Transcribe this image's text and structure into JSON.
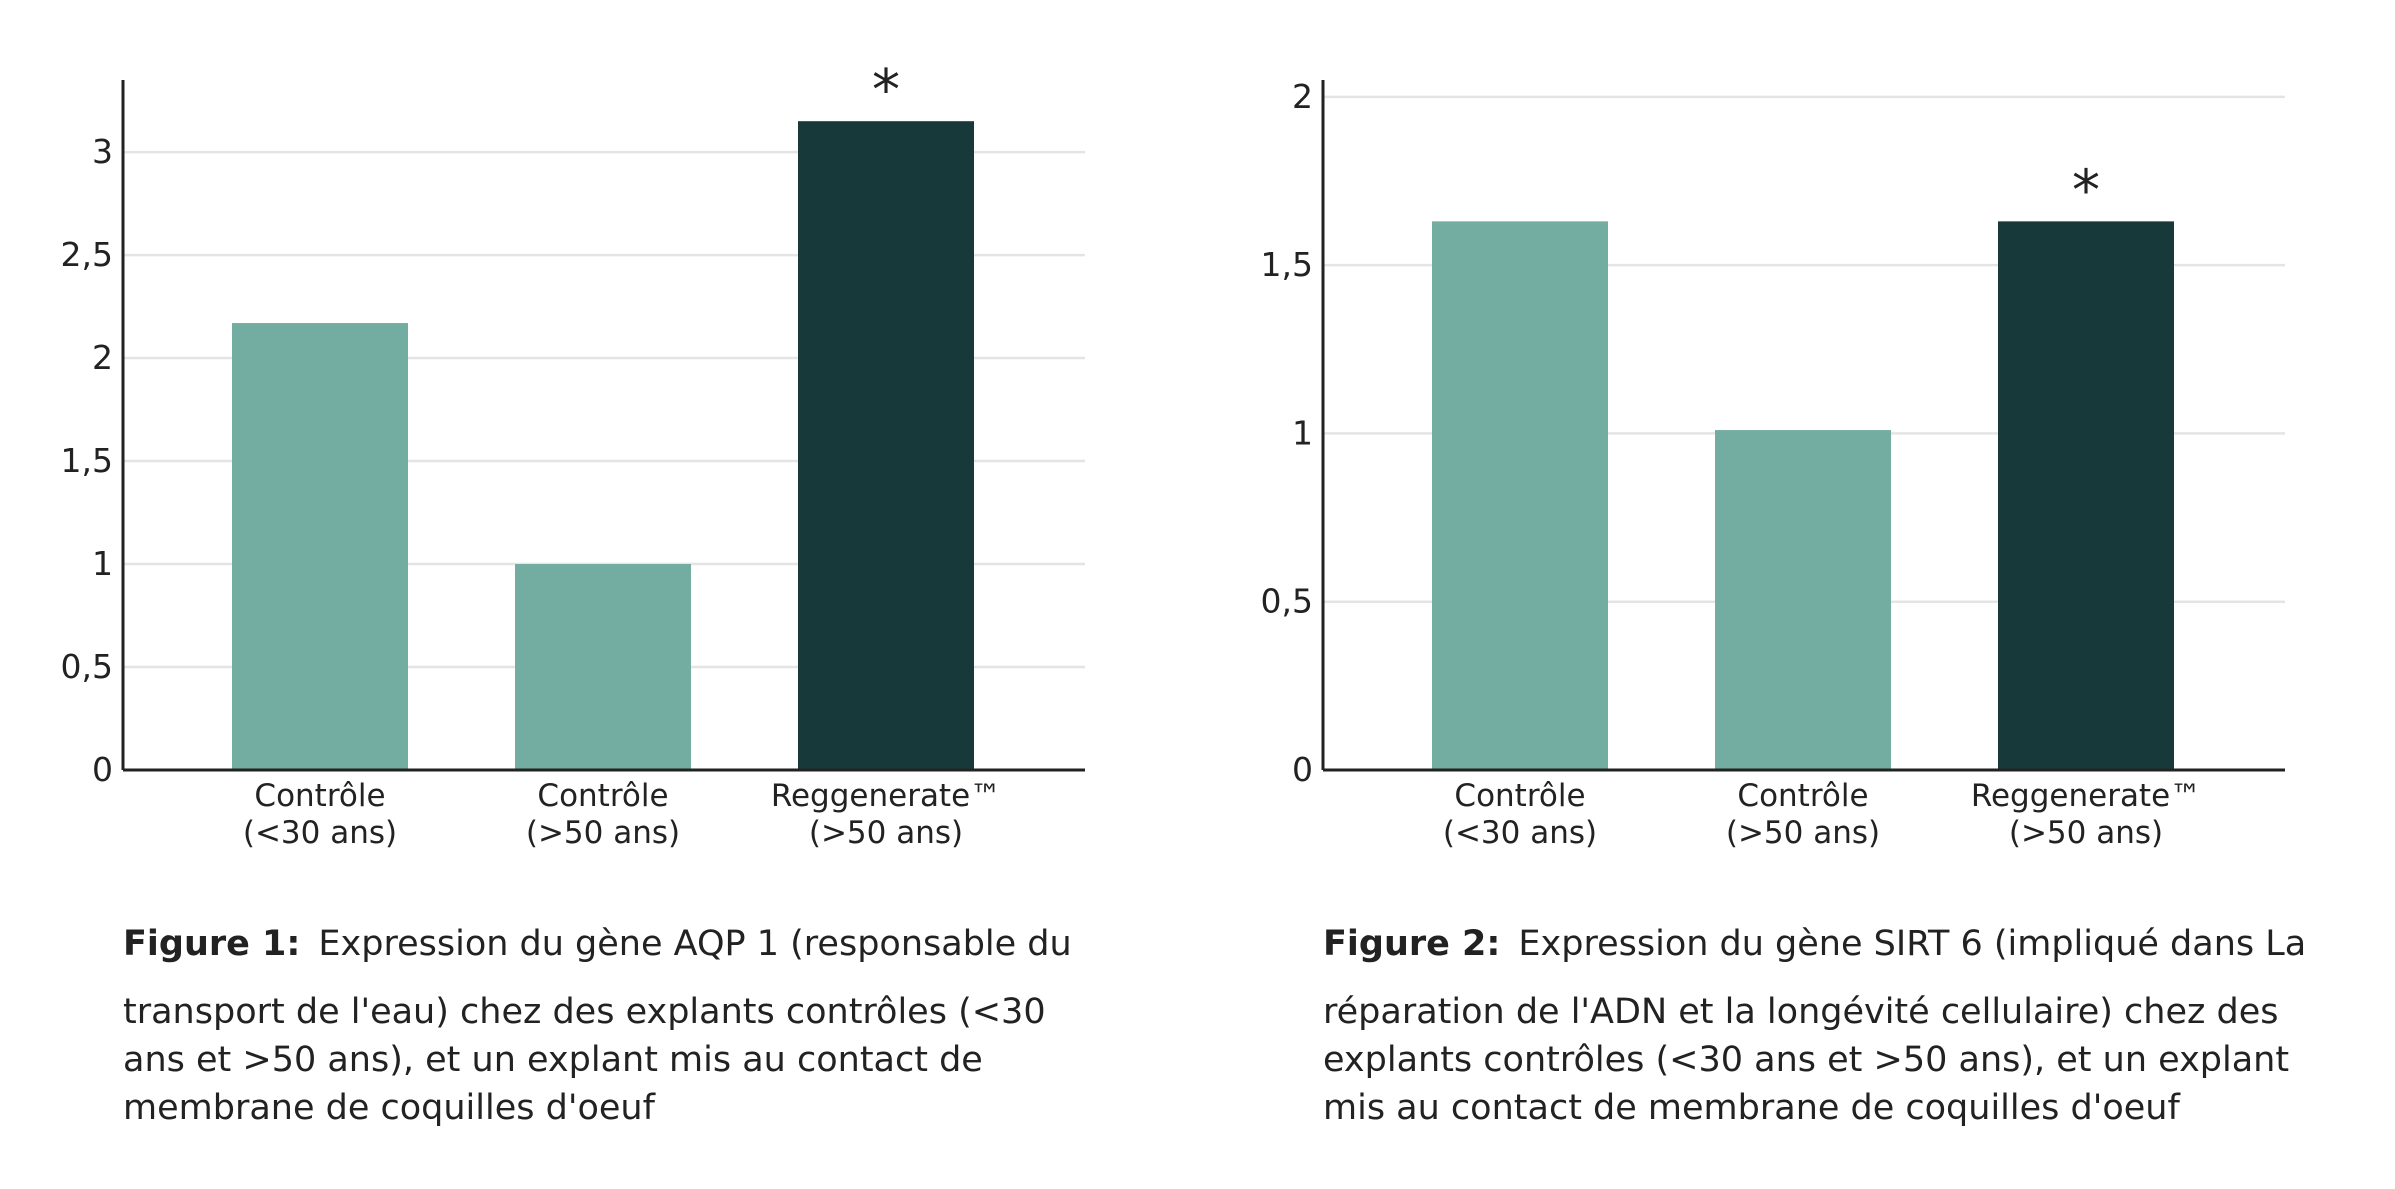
{
  "colors": {
    "control": "#73aca1",
    "product": "#17393a",
    "grid": "#e4e4e4",
    "axis": "#222222"
  },
  "figures": [
    {
      "caption": {
        "label": "Figure 1:",
        "line1": "Expression du gène AQP 1 (responsable du",
        "line2": "transport de l'eau) chez des explants contrôles (<30",
        "line3": "ans et >50 ans), et un explant mis au contact de",
        "line4": "membrane de coquilles d'oeuf"
      },
      "chart_data": {
        "type": "bar",
        "title": "",
        "xlabel": "",
        "ylabel": "",
        "ylim": [
          0,
          3.35
        ],
        "yticks": [
          0,
          0.5,
          1,
          1.5,
          2,
          2.5,
          3
        ],
        "ytick_labels": [
          "0",
          "0,5",
          "1",
          "1,5",
          "2",
          "2,5",
          "3"
        ],
        "grid": true,
        "categories": [
          {
            "line1": "Contrôle",
            "line2": "(<30 ans)"
          },
          {
            "line1": "Contrôle",
            "line2": "(>50 ans)"
          },
          {
            "line1": "Reggenerate™",
            "line2": "(>50 ans)"
          }
        ],
        "values": [
          2.17,
          1.0,
          3.15
        ],
        "bar_colors": [
          "control",
          "control",
          "product"
        ],
        "annotations": [
          null,
          null,
          "*"
        ]
      }
    },
    {
      "caption": {
        "label": "Figure 2:",
        "line1": "Expression du gène SIRT 6 (impliqué dans La",
        "line2": "réparation de l'ADN et la longévité cellulaire) chez des",
        "line3": "explants contrôles (<30 ans et >50 ans), et un explant",
        "line4": "mis au contact de membrane de coquilles d'oeuf"
      },
      "chart_data": {
        "type": "bar",
        "title": "",
        "xlabel": "",
        "ylabel": "",
        "ylim": [
          0,
          2.05
        ],
        "yticks": [
          0,
          0.5,
          1,
          1.5,
          2
        ],
        "ytick_labels": [
          "0",
          "0,5",
          "1",
          "1,5",
          "2"
        ],
        "grid": true,
        "categories": [
          {
            "line1": "Contrôle",
            "line2": "(<30 ans)"
          },
          {
            "line1": "Contrôle",
            "line2": "(>50 ans)"
          },
          {
            "line1": "Reggenerate™",
            "line2": "(>50 ans)"
          }
        ],
        "values": [
          1.63,
          1.01,
          1.63
        ],
        "bar_colors": [
          "control",
          "control",
          "product"
        ],
        "annotations": [
          null,
          null,
          "*"
        ]
      }
    }
  ]
}
